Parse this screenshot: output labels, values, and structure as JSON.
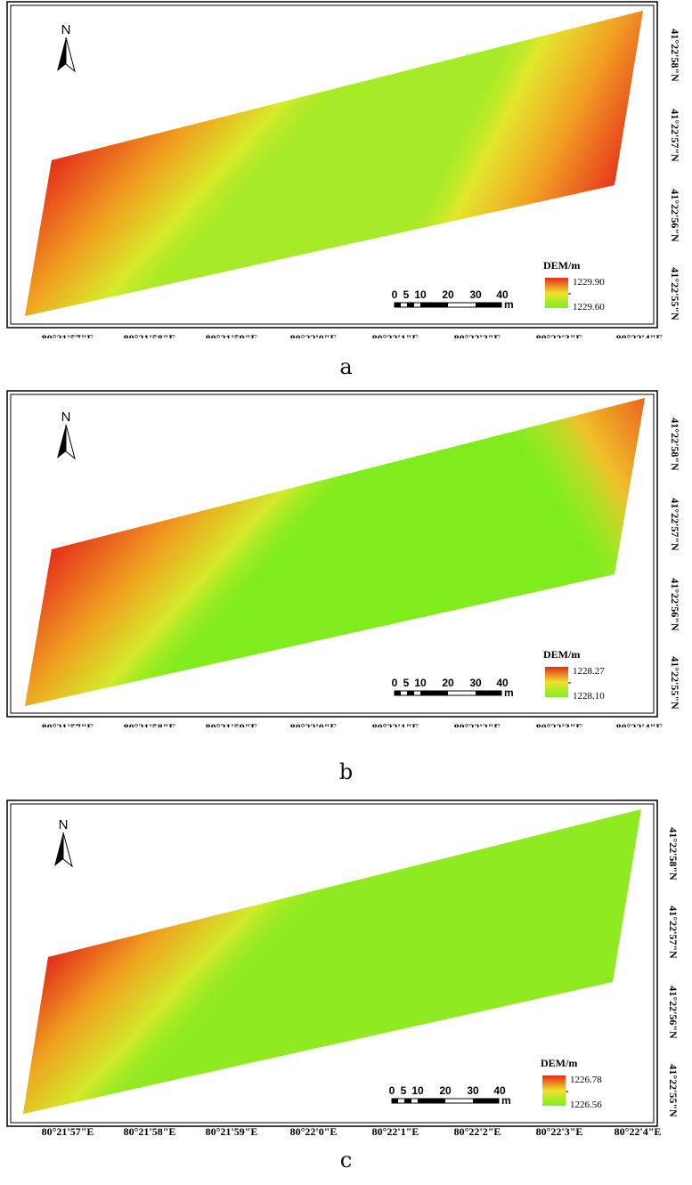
{
  "longitude_labels": [
    "80°21'57\"E",
    "80°21'58\"E",
    "80°21'59\"E",
    "80°22'0\"E",
    "80°22'1\"E",
    "80°22'2\"E",
    "80°22'3\"E",
    "80°22'4\"E"
  ],
  "latitude_labels": [
    "41°22'58\"N",
    "41°22'57\"N",
    "41°22'56\"N",
    "41°22'55\"N"
  ],
  "north_arrow": {
    "letter": "N",
    "icon": "north-arrow-icon"
  },
  "scale_bar": {
    "ticks": [
      "0",
      "5",
      "10",
      "20",
      "30",
      "40"
    ],
    "unit": "m"
  },
  "legend_title": "DEM/m",
  "colors": {
    "high": "#e42a1c",
    "mid": "#f2e02c",
    "low": "#7cf020"
  },
  "panels": [
    {
      "id": "a",
      "caption": "a",
      "legend_max": "1229.90",
      "legend_min": "1229.60"
    },
    {
      "id": "b",
      "caption": "b",
      "legend_max": "1228.27",
      "legend_min": "1228.10"
    },
    {
      "id": "c",
      "caption": "c",
      "legend_max": "1226.78",
      "legend_min": "1226.56"
    }
  ]
}
